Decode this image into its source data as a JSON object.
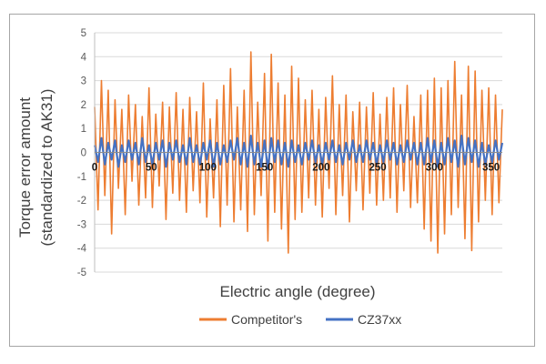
{
  "chart_data": {
    "type": "line",
    "title": "",
    "xlabel": "Electric angle (degree)",
    "ylabel_line1": "Torque error amount",
    "ylabel_line2": "(standardized to AK31)",
    "xlim": [
      0,
      360
    ],
    "ylim": [
      -5,
      5
    ],
    "x_ticks": [
      0,
      50,
      100,
      150,
      200,
      250,
      300,
      350
    ],
    "y_ticks": [
      -5,
      -4,
      -3,
      -2,
      -1,
      0,
      1,
      2,
      3,
      4,
      5
    ],
    "x_tick_labels": [
      "0",
      "50",
      "100",
      "150",
      "200",
      "250",
      "300",
      "350"
    ],
    "y_tick_labels": [
      "-5",
      "-4",
      "-3",
      "-2",
      "-1",
      "0",
      "1",
      "2",
      "3",
      "4",
      "5"
    ],
    "grid": "horizontal",
    "legend_position": "bottom",
    "series": [
      {
        "name": "Competitor's",
        "color": "#ed7d31",
        "x": [
          0,
          3,
          6,
          9,
          12,
          15,
          18,
          21,
          24,
          27,
          30,
          33,
          36,
          39,
          42,
          45,
          48,
          51,
          54,
          57,
          60,
          63,
          66,
          69,
          72,
          75,
          78,
          81,
          84,
          87,
          90,
          93,
          96,
          99,
          102,
          105,
          108,
          111,
          114,
          117,
          120,
          123,
          126,
          129,
          132,
          135,
          138,
          141,
          144,
          147,
          150,
          153,
          156,
          159,
          162,
          165,
          168,
          171,
          174,
          177,
          180,
          183,
          186,
          189,
          192,
          195,
          198,
          201,
          204,
          207,
          210,
          213,
          216,
          219,
          222,
          225,
          228,
          231,
          234,
          237,
          240,
          243,
          246,
          249,
          252,
          255,
          258,
          261,
          264,
          267,
          270,
          273,
          276,
          279,
          282,
          285,
          288,
          291,
          294,
          297,
          300,
          303,
          306,
          309,
          312,
          315,
          318,
          321,
          324,
          327,
          330,
          333,
          336,
          339,
          342,
          345,
          348,
          351,
          354,
          357,
          360
        ],
        "values": [
          1.9,
          -2.4,
          3.0,
          -1.8,
          2.6,
          -3.4,
          2.2,
          -1.5,
          1.8,
          -2.6,
          2.4,
          -1.2,
          2.0,
          -2.2,
          1.5,
          -1.9,
          2.7,
          -2.3,
          1.6,
          -1.4,
          2.1,
          -2.8,
          1.9,
          -1.7,
          2.5,
          -2.0,
          1.8,
          -2.5,
          2.3,
          -1.6,
          1.7,
          -2.1,
          2.9,
          -2.7,
          1.4,
          -1.9,
          2.2,
          -3.1,
          2.8,
          -2.2,
          3.5,
          -2.9,
          1.9,
          -2.4,
          2.6,
          -3.3,
          4.2,
          -2.6,
          2.1,
          -1.8,
          3.3,
          -3.7,
          4.1,
          -2.5,
          2.9,
          -3.2,
          2.4,
          -4.2,
          3.6,
          -2.8,
          3.1,
          -2.5,
          2.2,
          -1.9,
          2.6,
          -2.2,
          1.8,
          -2.7,
          2.3,
          -1.5,
          3.2,
          -2.6,
          2.0,
          -1.8,
          2.4,
          -2.9,
          1.7,
          -1.6,
          2.1,
          -2.4,
          1.9,
          -1.7,
          2.5,
          -2.2,
          1.6,
          -2.0,
          2.3,
          -1.9,
          2.7,
          -2.5,
          2.0,
          -1.6,
          2.8,
          -2.3,
          1.5,
          -2.1,
          2.4,
          -3.2,
          2.6,
          -3.7,
          3.1,
          -4.2,
          2.7,
          -3.4,
          3.0,
          -2.6,
          3.8,
          -2.3,
          2.4,
          -3.6,
          3.6,
          -4.1,
          3.4,
          -2.9,
          2.6,
          -2.0,
          2.7,
          -2.6,
          2.4,
          -2.1,
          1.8
        ]
      },
      {
        "name": "CZ37xx",
        "color": "#4472c4",
        "x": [
          0,
          3,
          6,
          9,
          12,
          15,
          18,
          21,
          24,
          27,
          30,
          33,
          36,
          39,
          42,
          45,
          48,
          51,
          54,
          57,
          60,
          63,
          66,
          69,
          72,
          75,
          78,
          81,
          84,
          87,
          90,
          93,
          96,
          99,
          102,
          105,
          108,
          111,
          114,
          117,
          120,
          123,
          126,
          129,
          132,
          135,
          138,
          141,
          144,
          147,
          150,
          153,
          156,
          159,
          162,
          165,
          168,
          171,
          174,
          177,
          180,
          183,
          186,
          189,
          192,
          195,
          198,
          201,
          204,
          207,
          210,
          213,
          216,
          219,
          222,
          225,
          228,
          231,
          234,
          237,
          240,
          243,
          246,
          249,
          252,
          255,
          258,
          261,
          264,
          267,
          270,
          273,
          276,
          279,
          282,
          285,
          288,
          291,
          294,
          297,
          300,
          303,
          306,
          309,
          312,
          315,
          318,
          321,
          324,
          327,
          330,
          333,
          336,
          339,
          342,
          345,
          348,
          351,
          354,
          357,
          360
        ],
        "values": [
          0.3,
          -0.4,
          0.6,
          -0.5,
          0.4,
          -0.3,
          0.5,
          -0.6,
          0.3,
          -0.4,
          0.5,
          -0.3,
          0.4,
          -0.5,
          0.6,
          -0.4,
          0.3,
          -0.5,
          0.4,
          -0.3,
          0.5,
          -0.6,
          0.4,
          -0.3,
          0.5,
          -0.4,
          0.3,
          -0.5,
          0.6,
          -0.4,
          0.3,
          -0.5,
          0.4,
          -0.3,
          0.5,
          -0.6,
          0.4,
          -0.5,
          0.3,
          -0.4,
          0.5,
          -0.3,
          0.6,
          -0.5,
          0.4,
          -0.6,
          0.7,
          -0.5,
          0.4,
          -0.6,
          0.5,
          -0.7,
          0.6,
          -0.4,
          0.5,
          -0.5,
          0.4,
          -0.6,
          0.5,
          -0.4,
          0.3,
          -0.5,
          0.4,
          -0.3,
          0.5,
          -0.4,
          0.3,
          -0.5,
          0.4,
          -0.3,
          0.5,
          -0.4,
          0.3,
          -0.5,
          0.4,
          -0.3,
          0.5,
          -0.4,
          0.3,
          -0.4,
          0.5,
          -0.3,
          0.4,
          -0.5,
          0.3,
          -0.4,
          0.5,
          -0.3,
          0.4,
          -0.5,
          0.3,
          -0.4,
          0.5,
          -0.3,
          0.4,
          -0.5,
          0.4,
          -0.5,
          0.6,
          -0.4,
          0.5,
          -0.6,
          0.4,
          -0.5,
          0.6,
          -0.4,
          0.5,
          -0.6,
          0.7,
          -0.5,
          0.6,
          -0.4,
          0.5,
          -0.6,
          0.4,
          -0.5,
          0.3,
          -0.4,
          0.5,
          -0.3,
          0.4
        ]
      }
    ]
  }
}
